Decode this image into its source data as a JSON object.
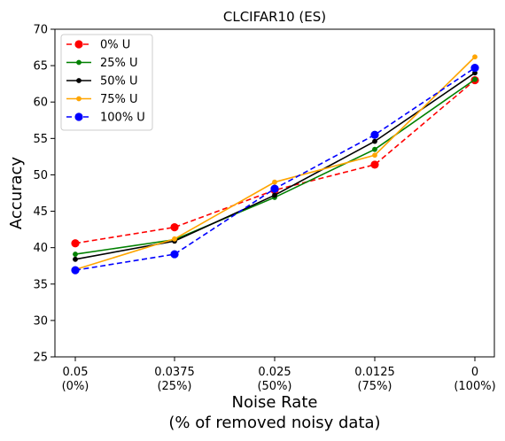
{
  "chart_data": {
    "type": "line",
    "title": "CLCIFAR10 (ES)",
    "xlabel_line1": "Noise Rate",
    "xlabel_line2": "(% of removed noisy data)",
    "ylabel": "Accuracy",
    "categories": [
      {
        "value": "0.05",
        "sub": "(0%)"
      },
      {
        "value": "0.0375",
        "sub": "(25%)"
      },
      {
        "value": "0.025",
        "sub": "(50%)"
      },
      {
        "value": "0.0125",
        "sub": "(75%)"
      },
      {
        "value": "0",
        "sub": "(100%)"
      }
    ],
    "ylim": [
      25,
      70
    ],
    "yticks": [
      25,
      30,
      35,
      40,
      45,
      50,
      55,
      60,
      65,
      70
    ],
    "grid": false,
    "legend_position": "top-left",
    "series": [
      {
        "name": "0% U",
        "color": "#ff0000",
        "dash": true,
        "marker": "large",
        "values": [
          40.6,
          42.8,
          47.9,
          51.4,
          63.0
        ]
      },
      {
        "name": "25% U",
        "color": "#008000",
        "dash": false,
        "marker": "small",
        "values": [
          39.1,
          41.1,
          46.9,
          53.5,
          63.1
        ]
      },
      {
        "name": "50% U",
        "color": "#000000",
        "dash": false,
        "marker": "small",
        "values": [
          38.4,
          40.9,
          47.2,
          54.6,
          64.0
        ]
      },
      {
        "name": "75% U",
        "color": "#ffa500",
        "dash": false,
        "marker": "small",
        "values": [
          37.0,
          41.2,
          49.0,
          52.7,
          66.2
        ]
      },
      {
        "name": "100% U",
        "color": "#0000ff",
        "dash": true,
        "marker": "large",
        "values": [
          36.9,
          39.1,
          48.1,
          55.5,
          64.7
        ]
      }
    ]
  }
}
